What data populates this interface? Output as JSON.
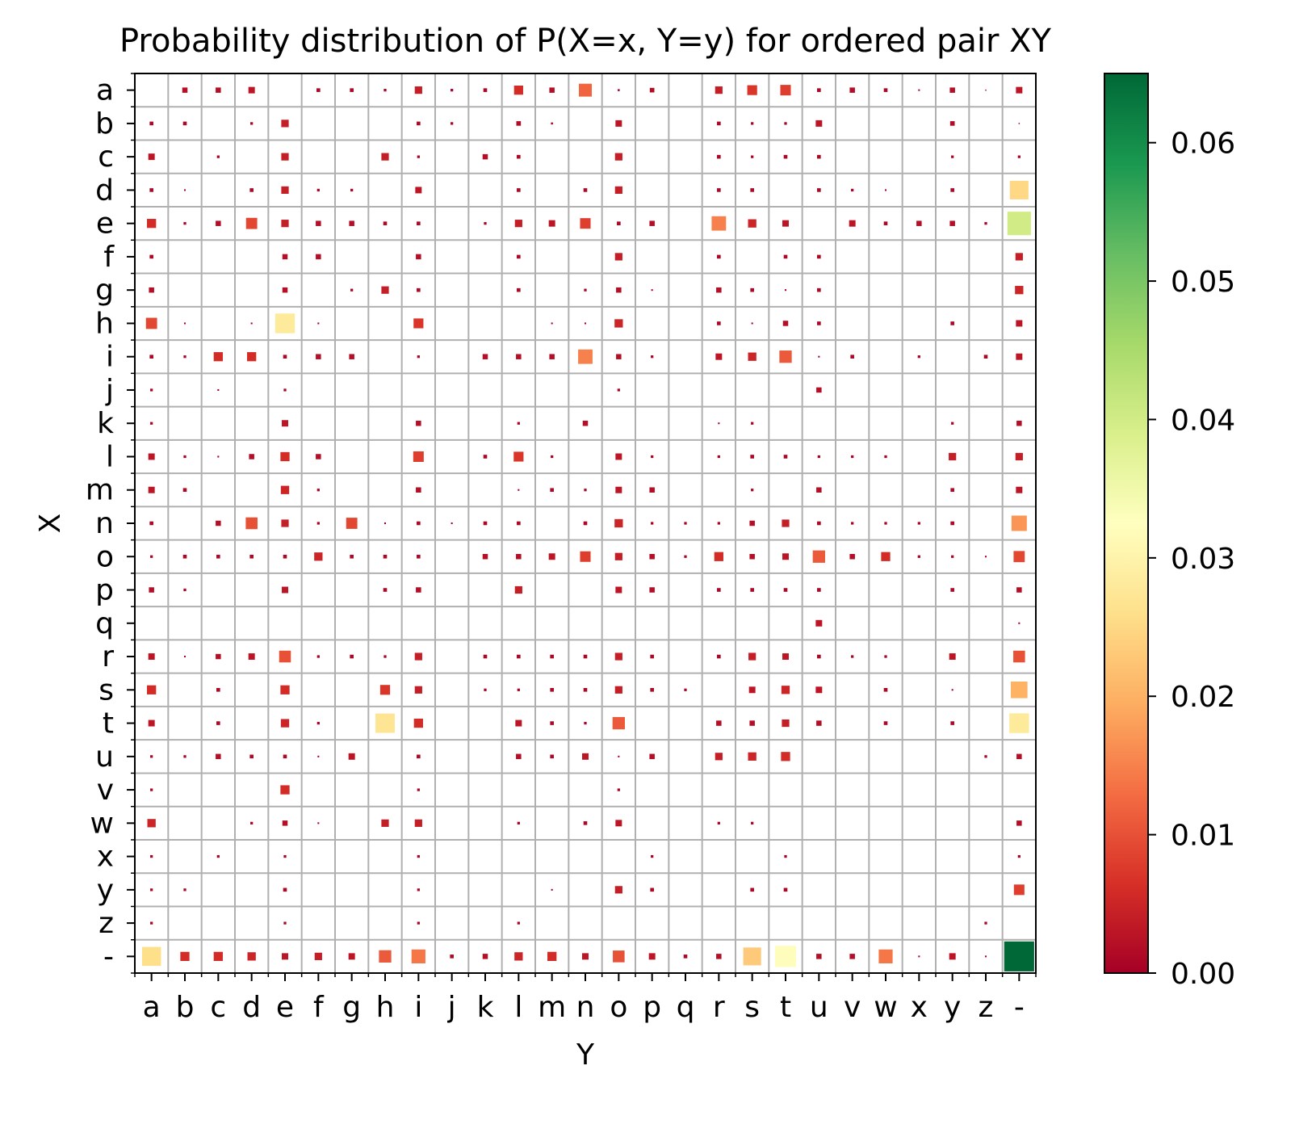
{
  "chart_data": {
    "type": "heatmap",
    "title": "Probability distribution of P(X=x, Y=y) for ordered pair XY",
    "xlabel": "Y",
    "ylabel": "X",
    "x_categories": [
      "a",
      "b",
      "c",
      "d",
      "e",
      "f",
      "g",
      "h",
      "i",
      "j",
      "k",
      "l",
      "m",
      "n",
      "o",
      "p",
      "q",
      "r",
      "s",
      "t",
      "u",
      "v",
      "w",
      "x",
      "y",
      "z",
      "-"
    ],
    "y_categories": [
      "a",
      "b",
      "c",
      "d",
      "e",
      "f",
      "g",
      "h",
      "i",
      "j",
      "k",
      "l",
      "m",
      "n",
      "o",
      "p",
      "q",
      "r",
      "s",
      "t",
      "u",
      "v",
      "w",
      "x",
      "y",
      "z",
      "-"
    ],
    "grid": true,
    "colorbar": {
      "colormap": "RdYlGn",
      "range": [
        0,
        0.065
      ],
      "ticks": [
        "0.00",
        "0.01",
        "0.02",
        "0.03",
        "0.04",
        "0.05",
        "0.06"
      ]
    },
    "values": [
      [
        0,
        0.002,
        0.002,
        0.003,
        0,
        0.001,
        0.001,
        0.0005,
        0.004,
        0.0005,
        0.001,
        0.006,
        0.002,
        0.012,
        0.0003,
        0.0015,
        0,
        0.004,
        0.007,
        0.008,
        0.001,
        0.002,
        0.001,
        0.0002,
        0.002,
        0.0001,
        0.003
      ],
      [
        0.001,
        0.001,
        0,
        0.0005,
        0.004,
        0,
        0,
        0,
        0.001,
        0.0005,
        0,
        0.0015,
        0.0003,
        0,
        0.003,
        0,
        0,
        0.001,
        0.0005,
        0.0005,
        0.003,
        0,
        0,
        0,
        0.0015,
        0,
        0.0001
      ],
      [
        0.003,
        0,
        0.0005,
        0,
        0.004,
        0,
        0,
        0.004,
        0.0005,
        0,
        0.002,
        0.001,
        0,
        0,
        0.004,
        0,
        0,
        0.001,
        0.0005,
        0.001,
        0.001,
        0,
        0,
        0,
        0.0005,
        0,
        0.0005
      ],
      [
        0.001,
        0.0002,
        0,
        0.001,
        0.004,
        0.0005,
        0.0005,
        0,
        0.003,
        0,
        0,
        0.001,
        0,
        0.001,
        0.004,
        0,
        0,
        0.001,
        0.001,
        0,
        0.001,
        0.0005,
        0.0002,
        0,
        0.001,
        0,
        0.025
      ],
      [
        0.006,
        0.0005,
        0.002,
        0.009,
        0.004,
        0.002,
        0.002,
        0.001,
        0.001,
        0,
        0.0005,
        0.004,
        0.003,
        0.008,
        0.001,
        0.002,
        0,
        0.015,
        0.005,
        0.003,
        0,
        0.003,
        0.001,
        0.002,
        0.002,
        0.0005,
        0.04
      ],
      [
        0.001,
        0,
        0,
        0,
        0.002,
        0.002,
        0,
        0,
        0.002,
        0,
        0,
        0.001,
        0,
        0,
        0.004,
        0,
        0,
        0.001,
        0,
        0.001,
        0.001,
        0,
        0,
        0,
        0,
        0,
        0.004
      ],
      [
        0.002,
        0,
        0,
        0,
        0.002,
        0,
        0.0005,
        0.004,
        0.001,
        0,
        0,
        0.001,
        0,
        0.0005,
        0.002,
        0.0002,
        0,
        0.002,
        0.001,
        0.0002,
        0.001,
        0,
        0,
        0,
        0,
        0,
        0.005
      ],
      [
        0.009,
        0.0002,
        0,
        0.0002,
        0.028,
        0.0002,
        0,
        0,
        0.007,
        0,
        0,
        0,
        0.0002,
        0.0002,
        0.005,
        0,
        0,
        0.001,
        0.0002,
        0.002,
        0.001,
        0,
        0,
        0,
        0.001,
        0,
        0.003
      ],
      [
        0.001,
        0.0005,
        0.006,
        0.006,
        0.001,
        0.002,
        0.002,
        0,
        0.0005,
        0,
        0.002,
        0.002,
        0.002,
        0.015,
        0.002,
        0.0005,
        0,
        0.003,
        0.005,
        0.011,
        0.0002,
        0.001,
        0,
        0.0005,
        0,
        0.001,
        0.003
      ],
      [
        0.0005,
        0,
        0.0002,
        0,
        0.0005,
        0,
        0,
        0,
        0,
        0,
        0,
        0,
        0,
        0,
        0.0005,
        0,
        0,
        0,
        0,
        0,
        0.002,
        0,
        0,
        0,
        0,
        0,
        0
      ],
      [
        0.0005,
        0,
        0,
        0,
        0.003,
        0,
        0,
        0,
        0.002,
        0,
        0,
        0.0005,
        0,
        0.002,
        0,
        0,
        0,
        0.0002,
        0.0005,
        0,
        0,
        0,
        0,
        0,
        0.0005,
        0,
        0.002
      ],
      [
        0.003,
        0.0005,
        0.0002,
        0.002,
        0.006,
        0.002,
        0,
        0,
        0.008,
        0,
        0.001,
        0.007,
        0.0005,
        0,
        0.003,
        0.0005,
        0,
        0.0005,
        0.001,
        0.001,
        0.0005,
        0.0005,
        0.0005,
        0,
        0.004,
        0,
        0.004
      ],
      [
        0.003,
        0.001,
        0,
        0,
        0.005,
        0.0005,
        0,
        0,
        0.002,
        0,
        0,
        0.0002,
        0.001,
        0.0005,
        0.003,
        0.002,
        0,
        0,
        0.0005,
        0,
        0.002,
        0,
        0,
        0,
        0.001,
        0,
        0.003
      ],
      [
        0.001,
        0,
        0.002,
        0.01,
        0.004,
        0.0005,
        0.009,
        0.0002,
        0.001,
        0.0002,
        0.001,
        0.001,
        0,
        0.001,
        0.005,
        0.0005,
        0.0005,
        0.0005,
        0.002,
        0.004,
        0.001,
        0.0005,
        0.0005,
        0.0005,
        0.001,
        0,
        0.017
      ],
      [
        0.0005,
        0.001,
        0.001,
        0.001,
        0.001,
        0.005,
        0.001,
        0.001,
        0.001,
        0,
        0.002,
        0.002,
        0.003,
        0.008,
        0.004,
        0.002,
        0.0005,
        0.006,
        0.002,
        0.003,
        0.011,
        0.002,
        0.006,
        0.0005,
        0.0005,
        0.0002,
        0.009
      ],
      [
        0.002,
        0.0005,
        0,
        0,
        0.003,
        0,
        0,
        0.001,
        0.002,
        0,
        0,
        0.004,
        0,
        0,
        0.003,
        0.002,
        0,
        0.001,
        0.001,
        0.001,
        0.001,
        0,
        0,
        0,
        0.001,
        0,
        0.002
      ],
      [
        0,
        0,
        0,
        0,
        0,
        0,
        0,
        0,
        0,
        0,
        0,
        0,
        0,
        0,
        0,
        0,
        0,
        0,
        0,
        0,
        0.003,
        0,
        0,
        0,
        0,
        0,
        0.0002
      ],
      [
        0.003,
        0.0002,
        0.002,
        0.003,
        0.01,
        0.0005,
        0.001,
        0.0005,
        0.004,
        0,
        0.001,
        0.001,
        0.001,
        0.001,
        0.004,
        0.001,
        0,
        0.001,
        0.004,
        0.003,
        0.001,
        0.0005,
        0.0005,
        0,
        0.003,
        0,
        0.01
      ],
      [
        0.006,
        0,
        0.001,
        0,
        0.006,
        0,
        0,
        0.007,
        0.004,
        0,
        0.0005,
        0.0005,
        0.001,
        0.001,
        0.004,
        0.001,
        0.0005,
        0,
        0.003,
        0.005,
        0.003,
        0,
        0.001,
        0,
        0.0002,
        0,
        0.02
      ],
      [
        0.003,
        0,
        0.001,
        0,
        0.005,
        0.0005,
        0,
        0.027,
        0.006,
        0,
        0,
        0.003,
        0.001,
        0.0005,
        0.011,
        0,
        0,
        0.002,
        0.002,
        0.004,
        0.002,
        0,
        0.001,
        0,
        0.001,
        0,
        0.028
      ],
      [
        0.0005,
        0.0005,
        0.002,
        0.001,
        0.001,
        0.0002,
        0.003,
        0,
        0.001,
        0,
        0,
        0.002,
        0.001,
        0.003,
        0.0002,
        0.002,
        0,
        0.004,
        0.005,
        0.006,
        0,
        0,
        0,
        0,
        0,
        0.0005,
        0.002
      ],
      [
        0.0005,
        0,
        0,
        0,
        0.006,
        0,
        0,
        0,
        0.0005,
        0,
        0,
        0,
        0,
        0,
        0.0005,
        0,
        0,
        0,
        0,
        0,
        0,
        0,
        0,
        0,
        0,
        0,
        0
      ],
      [
        0.005,
        0,
        0,
        0.0005,
        0.002,
        0.0002,
        0,
        0.004,
        0.004,
        0,
        0,
        0.0005,
        0,
        0.001,
        0.003,
        0,
        0,
        0.0005,
        0.0005,
        0,
        0,
        0,
        0,
        0,
        0,
        0,
        0.002
      ],
      [
        0.0005,
        0,
        0.0005,
        0,
        0.0005,
        0,
        0,
        0,
        0.0005,
        0,
        0,
        0,
        0,
        0,
        0,
        0.0005,
        0,
        0,
        0,
        0.0005,
        0,
        0,
        0,
        0,
        0,
        0,
        0.0005
      ],
      [
        0.0005,
        0.0005,
        0,
        0,
        0.001,
        0,
        0,
        0,
        0.0005,
        0,
        0,
        0,
        0.0002,
        0,
        0.004,
        0.001,
        0,
        0,
        0.001,
        0.001,
        0,
        0,
        0,
        0,
        0,
        0,
        0.008
      ],
      [
        0.0005,
        0,
        0,
        0,
        0.0005,
        0,
        0,
        0,
        0.0005,
        0,
        0,
        0.0005,
        0,
        0,
        0,
        0,
        0,
        0,
        0,
        0,
        0,
        0,
        0,
        0,
        0,
        0.0005,
        0
      ],
      [
        0.026,
        0.006,
        0.006,
        0.005,
        0.003,
        0.004,
        0.003,
        0.011,
        0.014,
        0.001,
        0.002,
        0.005,
        0.006,
        0.003,
        0.01,
        0.003,
        0.001,
        0.002,
        0.023,
        0.032,
        0.002,
        0.002,
        0.014,
        0.0002,
        0.003,
        0.0002,
        0.065
      ]
    ]
  }
}
